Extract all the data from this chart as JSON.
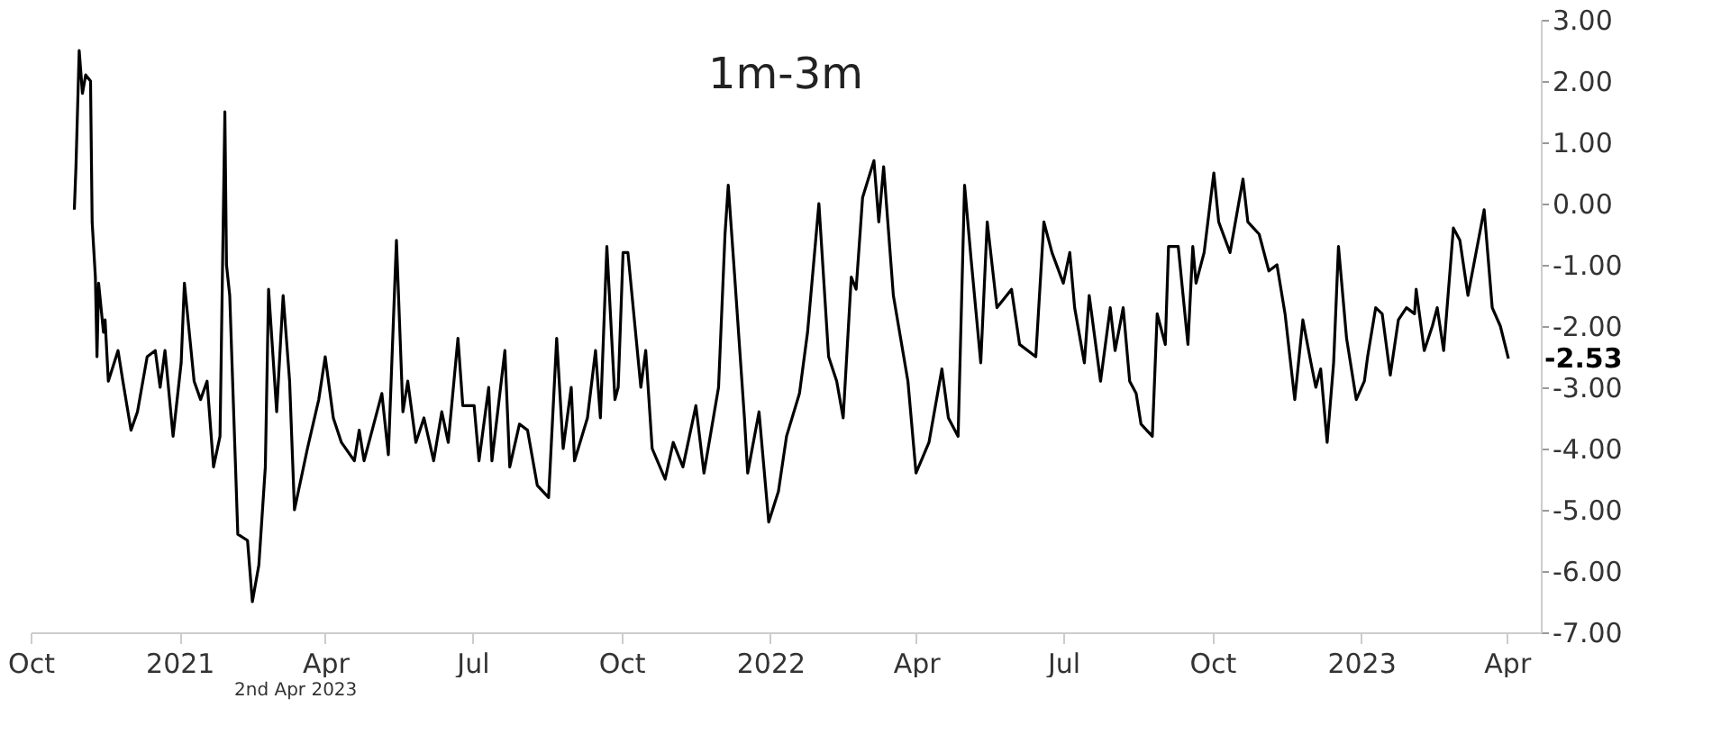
{
  "chart_data": {
    "type": "line",
    "title": "1m-3m",
    "x": [
      "2020-10-28",
      "2020-10-29",
      "2020-10-31",
      "2020-11-02",
      "2020-11-04",
      "2020-11-07",
      "2020-11-08",
      "2020-11-10",
      "2020-11-11",
      "2020-11-12",
      "2020-11-15",
      "2020-11-16",
      "2020-11-18",
      "2020-11-24",
      "2020-11-27",
      "2020-12-02",
      "2020-12-06",
      "2020-12-12",
      "2020-12-17",
      "2020-12-20",
      "2020-12-23",
      "2020-12-28",
      "2021-01-02",
      "2021-01-04",
      "2021-01-10",
      "2021-01-14",
      "2021-01-18",
      "2021-01-22",
      "2021-01-26",
      "2021-01-29",
      "2021-01-30",
      "2021-02-01",
      "2021-02-06",
      "2021-02-12",
      "2021-02-15",
      "2021-02-19",
      "2021-02-23",
      "2021-02-25",
      "2021-03-02",
      "2021-03-06",
      "2021-03-10",
      "2021-03-13",
      "2021-03-21",
      "2021-03-28",
      "2021-04-01",
      "2021-04-06",
      "2021-04-11",
      "2021-04-19",
      "2021-04-22",
      "2021-04-25",
      "2021-04-30",
      "2021-05-06",
      "2021-05-10",
      "2021-05-15",
      "2021-05-19",
      "2021-05-22",
      "2021-05-27",
      "2021-06-01",
      "2021-06-07",
      "2021-06-12",
      "2021-06-16",
      "2021-06-22",
      "2021-06-25",
      "2021-07-02",
      "2021-07-05",
      "2021-07-11",
      "2021-07-13",
      "2021-07-21",
      "2021-07-24",
      "2021-07-30",
      "2021-08-04",
      "2021-08-10",
      "2021-08-17",
      "2021-08-22",
      "2021-08-26",
      "2021-08-31",
      "2021-09-02",
      "2021-09-10",
      "2021-09-15",
      "2021-09-18",
      "2021-09-22",
      "2021-09-27",
      "2021-09-29",
      "2021-10-02",
      "2021-10-05",
      "2021-10-13",
      "2021-10-16",
      "2021-10-20",
      "2021-10-28",
      "2021-11-02",
      "2021-11-08",
      "2021-11-16",
      "2021-11-21",
      "2021-11-30",
      "2021-12-04",
      "2021-12-06",
      "2021-12-10",
      "2021-12-16",
      "2021-12-18",
      "2021-12-25",
      "2021-12-31",
      "2022-01-06",
      "2022-01-11",
      "2022-01-19",
      "2022-01-24",
      "2022-01-31",
      "2022-02-06",
      "2022-02-11",
      "2022-02-15",
      "2022-02-20",
      "2022-02-23",
      "2022-02-27",
      "2022-03-06",
      "2022-03-09",
      "2022-03-12",
      "2022-03-18",
      "2022-03-27",
      "2022-04-01",
      "2022-04-09",
      "2022-04-17",
      "2022-04-21",
      "2022-04-27",
      "2022-05-01",
      "2022-05-05",
      "2022-05-11",
      "2022-05-15",
      "2022-05-21",
      "2022-05-30",
      "2022-06-04",
      "2022-06-14",
      "2022-06-19",
      "2022-06-24",
      "2022-07-01",
      "2022-07-05",
      "2022-07-08",
      "2022-07-14",
      "2022-07-17",
      "2022-07-24",
      "2022-07-30",
      "2022-08-02",
      "2022-08-07",
      "2022-08-11",
      "2022-08-15",
      "2022-08-18",
      "2022-08-25",
      "2022-08-28",
      "2022-09-02",
      "2022-09-04",
      "2022-09-10",
      "2022-09-16",
      "2022-09-19",
      "2022-09-21",
      "2022-09-26",
      "2022-10-02",
      "2022-10-05",
      "2022-10-12",
      "2022-10-20",
      "2022-10-23",
      "2022-10-30",
      "2022-11-05",
      "2022-11-10",
      "2022-11-15",
      "2022-11-21",
      "2022-11-26",
      "2022-12-01",
      "2022-12-04",
      "2022-12-07",
      "2022-12-11",
      "2022-12-15",
      "2022-12-18",
      "2022-12-23",
      "2022-12-29",
      "2023-01-03",
      "2023-01-05",
      "2023-01-10",
      "2023-01-14",
      "2023-01-19",
      "2023-01-24",
      "2023-01-29",
      "2023-02-03",
      "2023-02-04",
      "2023-02-09",
      "2023-02-14",
      "2023-02-17",
      "2023-02-21",
      "2023-02-27",
      "2023-03-03",
      "2023-03-08",
      "2023-03-18",
      "2023-03-23",
      "2023-03-28",
      "2023-04-02"
    ],
    "series": [
      {
        "color": "#000000",
        "values": [
          -0.1,
          0.6,
          2.5,
          1.8,
          2.1,
          2.0,
          -0.3,
          -1.2,
          -2.5,
          -1.3,
          -2.1,
          -1.9,
          -2.9,
          -2.4,
          -2.9,
          -3.7,
          -3.4,
          -2.5,
          -2.4,
          -3.0,
          -2.4,
          -3.8,
          -2.6,
          -1.3,
          -2.9,
          -3.2,
          -2.9,
          -4.3,
          -3.8,
          1.5,
          -1.0,
          -1.5,
          -5.4,
          -5.5,
          -6.5,
          -5.9,
          -4.3,
          -1.4,
          -3.4,
          -1.5,
          -2.9,
          -5.0,
          -4.0,
          -3.2,
          -2.5,
          -3.5,
          -3.9,
          -4.2,
          -3.7,
          -4.2,
          -3.7,
          -3.1,
          -4.1,
          -0.6,
          -3.4,
          -2.9,
          -3.9,
          -3.5,
          -4.2,
          -3.4,
          -3.9,
          -2.2,
          -3.3,
          -3.3,
          -4.2,
          -3.0,
          -4.2,
          -2.4,
          -4.3,
          -3.6,
          -3.7,
          -4.6,
          -4.8,
          -2.2,
          -4.0,
          -3.0,
          -4.2,
          -3.5,
          -2.4,
          -3.5,
          -0.7,
          -3.2,
          -3.0,
          -0.8,
          -0.8,
          -3.0,
          -2.4,
          -4.0,
          -4.5,
          -3.9,
          -4.3,
          -3.3,
          -4.4,
          -3.0,
          -0.5,
          0.3,
          -1.2,
          -3.5,
          -4.4,
          -3.4,
          -5.2,
          -4.7,
          -3.8,
          -3.1,
          -2.1,
          0.0,
          -2.5,
          -2.9,
          -3.5,
          -1.2,
          -1.4,
          0.1,
          0.7,
          -0.3,
          0.6,
          -1.5,
          -2.9,
          -4.4,
          -3.9,
          -2.7,
          -3.5,
          -3.8,
          0.3,
          -0.9,
          -2.6,
          -0.3,
          -1.7,
          -1.4,
          -2.3,
          -2.5,
          -0.3,
          -0.8,
          -1.3,
          -0.8,
          -1.7,
          -2.6,
          -1.5,
          -2.9,
          -1.7,
          -2.4,
          -1.7,
          -2.9,
          -3.1,
          -3.6,
          -3.8,
          -1.8,
          -2.3,
          -0.7,
          -0.7,
          -2.3,
          -0.7,
          -1.3,
          -0.8,
          0.5,
          -0.3,
          -0.8,
          0.4,
          -0.3,
          -0.5,
          -1.1,
          -1.0,
          -1.8,
          -3.2,
          -1.9,
          -2.6,
          -3.0,
          -2.7,
          -3.9,
          -2.6,
          -0.7,
          -2.2,
          -3.2,
          -2.9,
          -2.5,
          -1.7,
          -1.8,
          -2.8,
          -1.9,
          -1.7,
          -1.8,
          -1.4,
          -2.4,
          -2.0,
          -1.7,
          -2.4,
          -0.4,
          -0.6,
          -1.5,
          -0.1,
          -1.7,
          -2.0,
          -2.53
        ]
      }
    ],
    "xlim": [
      "2020-10-01",
      "2023-04-22"
    ],
    "xticks": [
      {
        "value": "2020-10-01",
        "label": "Oct"
      },
      {
        "value": "2021-01-01",
        "label": "2021"
      },
      {
        "value": "2021-04-01",
        "label": "Apr"
      },
      {
        "value": "2021-07-01",
        "label": "Jul"
      },
      {
        "value": "2021-10-01",
        "label": "Oct"
      },
      {
        "value": "2022-01-01",
        "label": "2022"
      },
      {
        "value": "2022-04-01",
        "label": "Apr"
      },
      {
        "value": "2022-07-01",
        "label": "Jul"
      },
      {
        "value": "2022-10-01",
        "label": "Oct"
      },
      {
        "value": "2023-01-01",
        "label": "2023"
      },
      {
        "value": "2023-04-01",
        "label": "Apr"
      }
    ],
    "ylim": [
      -7,
      3
    ],
    "yticks": [
      {
        "value": -7,
        "label": "-7.00"
      },
      {
        "value": -6,
        "label": "-6.00"
      },
      {
        "value": -5,
        "label": "-5.00"
      },
      {
        "value": -4,
        "label": "-4.00"
      },
      {
        "value": -3,
        "label": "-3.00"
      },
      {
        "value": -2,
        "label": "-2.00"
      },
      {
        "value": -1,
        "label": "-1.00"
      },
      {
        "value": 0,
        "label": "0.00"
      },
      {
        "value": 1,
        "label": "1.00"
      },
      {
        "value": 2,
        "label": "2.00"
      },
      {
        "value": 3,
        "label": "3.00"
      }
    ],
    "annotations": [
      {
        "text": "-2.53",
        "x": "2023-04-02",
        "y": -2.53
      },
      "2nd Apr 2023"
    ],
    "grid": false,
    "line_style": "solid",
    "marker": "none"
  }
}
